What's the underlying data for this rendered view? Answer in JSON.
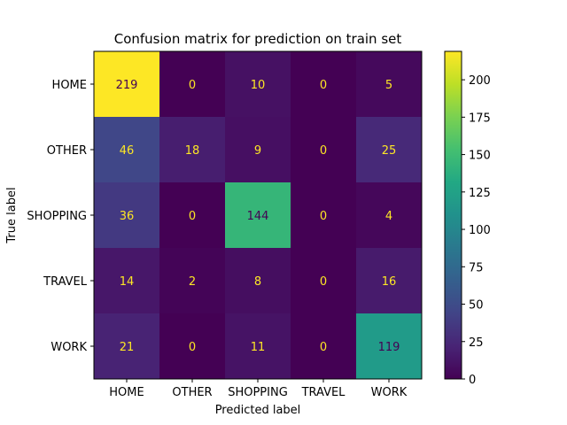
{
  "chart_data": {
    "type": "heatmap",
    "title": "Confusion matrix for prediction on train set",
    "xlabel": "Predicted label",
    "ylabel": "True label",
    "x_categories": [
      "HOME",
      "OTHER",
      "SHOPPING",
      "TRAVEL",
      "WORK"
    ],
    "y_categories": [
      "HOME",
      "OTHER",
      "SHOPPING",
      "TRAVEL",
      "WORK"
    ],
    "values": [
      [
        219,
        0,
        10,
        0,
        5
      ],
      [
        46,
        18,
        9,
        0,
        25
      ],
      [
        36,
        0,
        144,
        0,
        4
      ],
      [
        14,
        2,
        8,
        0,
        16
      ],
      [
        21,
        0,
        11,
        0,
        119
      ]
    ],
    "colormap": "viridis",
    "colorbar": {
      "range": [
        0,
        219
      ],
      "ticks": [
        0,
        25,
        50,
        75,
        100,
        125,
        150,
        175,
        200
      ]
    },
    "text_color_dark_cells": "#fde725",
    "text_color_light_cells": "#440154"
  }
}
